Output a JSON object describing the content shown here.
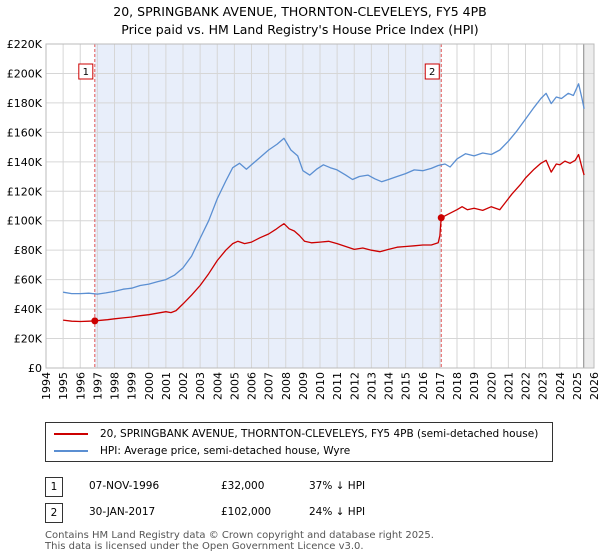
{
  "header": {
    "line1": "20, SPRINGBANK AVENUE, THORNTON-CLEVELEYS, FY5 4PB",
    "line2": "Price paid vs. HM Land Registry's House Price Index (HPI)"
  },
  "chart_data": {
    "type": "line",
    "x_range": [
      1994.0,
      2026.0
    ],
    "ylim": [
      0,
      220000
    ],
    "y_ticks": [
      0,
      20000,
      40000,
      60000,
      80000,
      100000,
      120000,
      140000,
      160000,
      180000,
      200000,
      220000
    ],
    "y_tick_labels": [
      "£0",
      "£20K",
      "£40K",
      "£60K",
      "£80K",
      "£100K",
      "£120K",
      "£140K",
      "£160K",
      "£180K",
      "£200K",
      "£220K"
    ],
    "x_ticks": [
      "1994",
      "1995",
      "1996",
      "1997",
      "1998",
      "1999",
      "2000",
      "2001",
      "2002",
      "2003",
      "2004",
      "2005",
      "2006",
      "2007",
      "2008",
      "2009",
      "2010",
      "2011",
      "2012",
      "2013",
      "2014",
      "2015",
      "2016",
      "2017",
      "2018",
      "2019",
      "2020",
      "2021",
      "2022",
      "2023",
      "2024",
      "2025",
      "2026"
    ],
    "grid": true,
    "shaded_period": [
      1996.85,
      2017.08
    ],
    "markers": [
      {
        "label": "1",
        "x": 1996.85,
        "y": 32000
      },
      {
        "label": "2",
        "x": 2017.08,
        "y": 102000
      }
    ],
    "series": [
      {
        "name": "20, SPRINGBANK AVENUE, THORNTON-CLEVELEYS, FY5 4PB (semi-detached house)",
        "color": "#cc0000",
        "points": [
          [
            1995.0,
            32500
          ],
          [
            1995.5,
            31800
          ],
          [
            1996.0,
            31600
          ],
          [
            1996.5,
            31800
          ],
          [
            1996.85,
            32000
          ],
          [
            1997.2,
            32400
          ],
          [
            1997.6,
            32800
          ],
          [
            1998.0,
            33400
          ],
          [
            1998.5,
            34000
          ],
          [
            1999.0,
            34600
          ],
          [
            1999.5,
            35500
          ],
          [
            2000.0,
            36200
          ],
          [
            2000.5,
            37200
          ],
          [
            2001.0,
            38200
          ],
          [
            2001.3,
            37600
          ],
          [
            2001.6,
            39000
          ],
          [
            2002.0,
            43500
          ],
          [
            2002.5,
            49500
          ],
          [
            2003.0,
            56000
          ],
          [
            2003.5,
            64000
          ],
          [
            2004.0,
            73000
          ],
          [
            2004.5,
            80000
          ],
          [
            2004.9,
            84500
          ],
          [
            2005.2,
            86000
          ],
          [
            2005.6,
            84500
          ],
          [
            2006.0,
            85500
          ],
          [
            2006.5,
            88500
          ],
          [
            2007.0,
            91000
          ],
          [
            2007.4,
            94000
          ],
          [
            2007.7,
            96500
          ],
          [
            2007.9,
            98000
          ],
          [
            2008.2,
            94500
          ],
          [
            2008.5,
            93000
          ],
          [
            2008.8,
            90000
          ],
          [
            2009.1,
            86000
          ],
          [
            2009.5,
            85000
          ],
          [
            2010.0,
            85500
          ],
          [
            2010.5,
            86000
          ],
          [
            2011.0,
            84500
          ],
          [
            2011.5,
            82500
          ],
          [
            2012.0,
            80500
          ],
          [
            2012.5,
            81500
          ],
          [
            2013.0,
            80000
          ],
          [
            2013.5,
            79000
          ],
          [
            2014.0,
            80500
          ],
          [
            2014.5,
            82000
          ],
          [
            2015.0,
            82500
          ],
          [
            2015.5,
            83000
          ],
          [
            2016.0,
            83500
          ],
          [
            2016.5,
            83500
          ],
          [
            2016.9,
            85000
          ],
          [
            2017.0,
            90000
          ],
          [
            2017.08,
            102000
          ],
          [
            2017.5,
            104500
          ],
          [
            2018.0,
            107500
          ],
          [
            2018.3,
            109500
          ],
          [
            2018.6,
            107500
          ],
          [
            2019.0,
            108500
          ],
          [
            2019.5,
            107000
          ],
          [
            2020.0,
            109500
          ],
          [
            2020.5,
            107500
          ],
          [
            2020.8,
            112000
          ],
          [
            2021.2,
            118000
          ],
          [
            2021.7,
            124500
          ],
          [
            2022.0,
            129000
          ],
          [
            2022.5,
            135000
          ],
          [
            2022.9,
            139000
          ],
          [
            2023.2,
            141000
          ],
          [
            2023.5,
            133000
          ],
          [
            2023.8,
            138500
          ],
          [
            2024.0,
            138000
          ],
          [
            2024.3,
            140500
          ],
          [
            2024.6,
            139000
          ],
          [
            2024.9,
            141000
          ],
          [
            2025.1,
            145000
          ],
          [
            2025.3,
            136000
          ],
          [
            2025.42,
            131000
          ]
        ]
      },
      {
        "name": "HPI: Average price, semi-detached house, Wyre",
        "color": "#5b8fd2",
        "points": [
          [
            1995.0,
            51500
          ],
          [
            1995.5,
            50500
          ],
          [
            1996.0,
            50500
          ],
          [
            1996.5,
            50800
          ],
          [
            1997.0,
            50200
          ],
          [
            1997.5,
            51000
          ],
          [
            1998.0,
            52000
          ],
          [
            1998.5,
            53500
          ],
          [
            1999.0,
            54200
          ],
          [
            1999.5,
            56000
          ],
          [
            2000.0,
            57000
          ],
          [
            2000.5,
            58500
          ],
          [
            2001.0,
            60000
          ],
          [
            2001.5,
            63000
          ],
          [
            2002.0,
            68000
          ],
          [
            2002.5,
            76000
          ],
          [
            2003.0,
            88000
          ],
          [
            2003.5,
            100000
          ],
          [
            2004.0,
            115000
          ],
          [
            2004.5,
            127000
          ],
          [
            2004.9,
            136000
          ],
          [
            2005.3,
            139000
          ],
          [
            2005.7,
            135000
          ],
          [
            2006.0,
            138000
          ],
          [
            2006.5,
            143000
          ],
          [
            2007.0,
            148000
          ],
          [
            2007.5,
            152000
          ],
          [
            2007.9,
            156000
          ],
          [
            2008.3,
            148000
          ],
          [
            2008.7,
            144000
          ],
          [
            2009.0,
            134000
          ],
          [
            2009.4,
            131000
          ],
          [
            2009.8,
            135000
          ],
          [
            2010.2,
            138000
          ],
          [
            2010.6,
            136000
          ],
          [
            2011.0,
            134500
          ],
          [
            2011.5,
            131000
          ],
          [
            2011.9,
            128000
          ],
          [
            2012.3,
            130000
          ],
          [
            2012.8,
            131000
          ],
          [
            2013.2,
            128500
          ],
          [
            2013.6,
            126500
          ],
          [
            2014.0,
            128000
          ],
          [
            2014.5,
            130000
          ],
          [
            2015.0,
            132000
          ],
          [
            2015.5,
            134500
          ],
          [
            2016.0,
            134000
          ],
          [
            2016.5,
            135500
          ],
          [
            2016.9,
            137500
          ],
          [
            2017.3,
            138500
          ],
          [
            2017.6,
            136500
          ],
          [
            2018.0,
            142000
          ],
          [
            2018.5,
            145500
          ],
          [
            2019.0,
            144000
          ],
          [
            2019.5,
            146000
          ],
          [
            2020.0,
            145000
          ],
          [
            2020.5,
            148000
          ],
          [
            2021.0,
            154000
          ],
          [
            2021.5,
            161000
          ],
          [
            2022.0,
            169000
          ],
          [
            2022.5,
            177000
          ],
          [
            2022.9,
            183000
          ],
          [
            2023.2,
            186500
          ],
          [
            2023.5,
            179500
          ],
          [
            2023.8,
            184000
          ],
          [
            2024.1,
            183000
          ],
          [
            2024.5,
            186500
          ],
          [
            2024.8,
            185000
          ],
          [
            2025.1,
            193000
          ],
          [
            2025.3,
            183000
          ],
          [
            2025.42,
            176000
          ]
        ]
      }
    ]
  },
  "legend": {
    "property_label": "20, SPRINGBANK AVENUE, THORNTON-CLEVELEYS, FY5 4PB (semi-detached house)",
    "hpi_label": "HPI: Average price, semi-detached house, Wyre"
  },
  "transactions": [
    {
      "id": "1",
      "date": "07-NOV-1996",
      "price": "£32,000",
      "delta": "37% ↓ HPI"
    },
    {
      "id": "2",
      "date": "30-JAN-2017",
      "price": "£102,000",
      "delta": "24% ↓ HPI"
    }
  ],
  "footer": {
    "line1": "Contains HM Land Registry data © Crown copyright and database right 2025.",
    "line2": "This data is licensed under the Open Government Licence v3.0."
  }
}
